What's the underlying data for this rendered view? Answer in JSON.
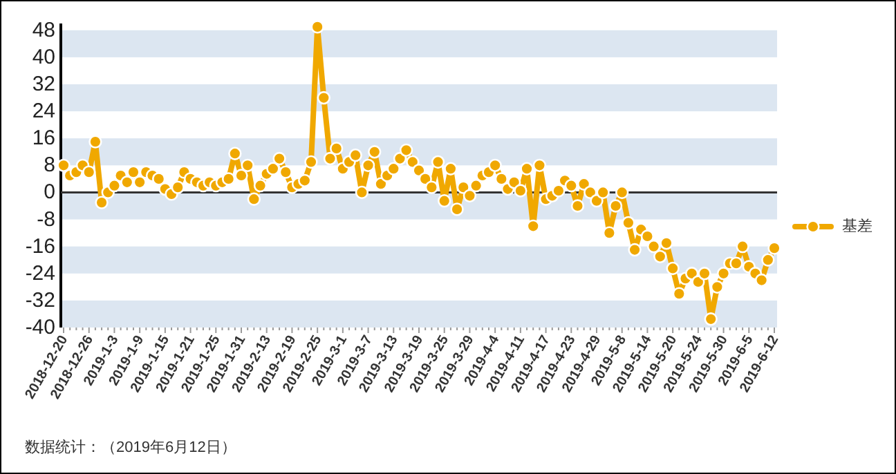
{
  "chart_data": {
    "type": "line",
    "categories": [
      "2018-12-20",
      null,
      null,
      null,
      "2018-12-26",
      null,
      null,
      null,
      "2019-1-3",
      null,
      null,
      null,
      "2019-1-9",
      null,
      null,
      null,
      "2019-1-15",
      null,
      null,
      null,
      "2019-1-21",
      null,
      null,
      null,
      "2019-1-25",
      null,
      null,
      null,
      "2019-1-31",
      null,
      null,
      null,
      "2019-2-13",
      null,
      null,
      null,
      "2019-2-19",
      null,
      null,
      null,
      "2019-2-25",
      null,
      null,
      null,
      "2019-3-1",
      null,
      null,
      null,
      "2019-3-7",
      null,
      null,
      null,
      "2019-3-13",
      null,
      null,
      null,
      "2019-3-19",
      null,
      null,
      null,
      "2019-3-25",
      null,
      null,
      null,
      "2019-3-29",
      null,
      null,
      null,
      "2019-4-4",
      null,
      null,
      null,
      "2019-4-11",
      null,
      null,
      null,
      "2019-4-17",
      null,
      null,
      null,
      "2019-4-23",
      null,
      null,
      null,
      "2019-4-29",
      null,
      null,
      null,
      "2019-5-8",
      null,
      null,
      null,
      "2019-5-14",
      null,
      null,
      null,
      "2019-5-20",
      null,
      null,
      null,
      "2019-5-24",
      null,
      null,
      null,
      "2019-5-30",
      null,
      null,
      null,
      "2019-6-5",
      null,
      null,
      null,
      "2019-6-12"
    ],
    "series": [
      {
        "name": "基差",
        "color": "#f0a800",
        "values": [
          8,
          5,
          6,
          8,
          6,
          15,
          -3,
          0,
          2,
          5,
          3,
          6,
          3,
          6,
          5,
          4,
          1,
          -0.5,
          1.5,
          6,
          4,
          3,
          2,
          3,
          2,
          3,
          4,
          11.5,
          5,
          8,
          -2,
          2,
          5.5,
          7,
          10,
          6,
          1.5,
          2.5,
          3.5,
          9,
          49,
          28,
          10,
          13,
          7,
          9,
          11,
          0,
          8,
          12,
          2.5,
          5,
          7,
          10,
          12.5,
          9,
          6.5,
          4,
          1.5,
          9,
          -2.5,
          7,
          -5,
          1.5,
          -1,
          2,
          5,
          6,
          8,
          4,
          1,
          3,
          0.5,
          7,
          -10,
          8,
          -2,
          -1,
          0.5,
          3.5,
          2,
          -4,
          2.5,
          0,
          -2.5,
          0,
          -12,
          -4,
          0,
          -9,
          -17,
          -11,
          -13,
          -16,
          -19,
          -15,
          -22.5,
          -30,
          -25.5,
          -24,
          -26.5,
          -24,
          -37.5,
          -28,
          -24,
          -21,
          -21,
          -16,
          -22,
          -24,
          -26,
          -20,
          -16.5
        ]
      }
    ],
    "ylim": [
      -40,
      50
    ],
    "yticks": [
      -40,
      -32,
      -24,
      -16,
      -8,
      0,
      8,
      16,
      24,
      32,
      40,
      48
    ],
    "bands": [
      {
        "axis": "y",
        "from": 40,
        "to": 48,
        "color": "#dce6f1"
      },
      {
        "axis": "y",
        "from": 24,
        "to": 32,
        "color": "#dce6f1"
      },
      {
        "axis": "y",
        "from": 8,
        "to": 16,
        "color": "#dce6f1"
      },
      {
        "axis": "y",
        "from": -8,
        "to": 0,
        "color": "#dce6f1"
      },
      {
        "axis": "y",
        "from": -24,
        "to": -16,
        "color": "#dce6f1"
      },
      {
        "axis": "y",
        "from": -40,
        "to": -32,
        "color": "#dce6f1"
      }
    ],
    "marker": "circle",
    "line_style": "solid",
    "legend": "right",
    "ref_lines": [
      {
        "axis": "y",
        "value": 0,
        "color": "#333333"
      }
    ],
    "annotations": [
      "数据统计：（2019年6月12日）"
    ]
  }
}
